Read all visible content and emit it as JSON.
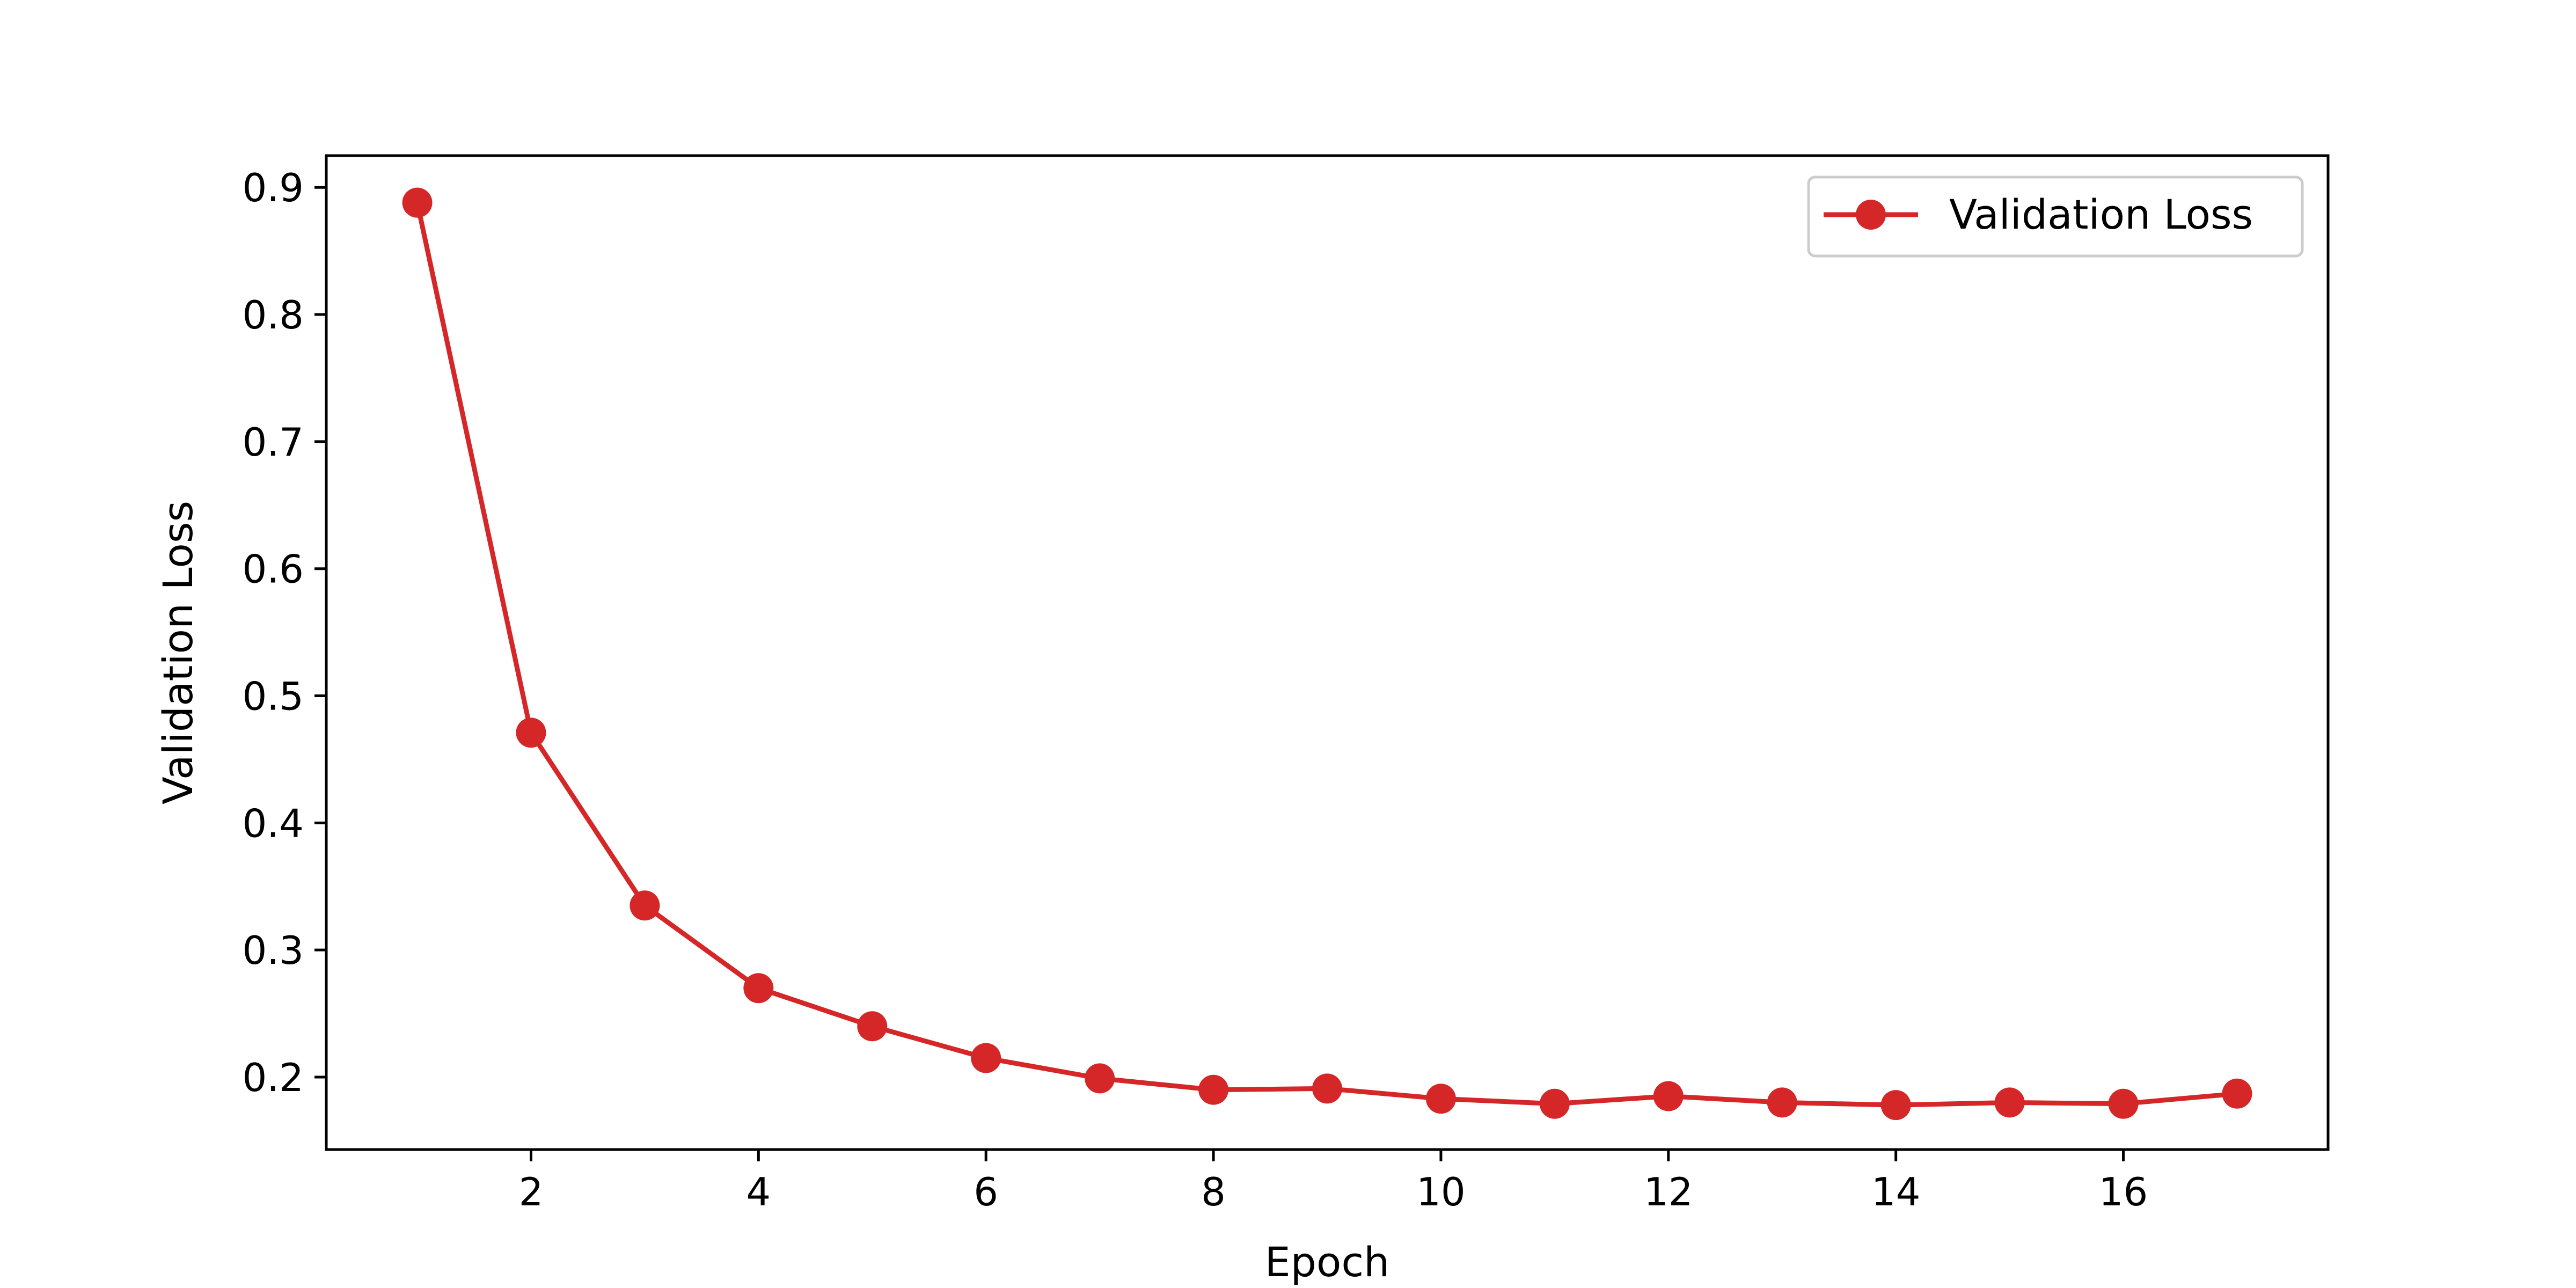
{
  "chart_data": {
    "type": "line",
    "title": "",
    "xlabel": "Epoch",
    "ylabel": "Validation Loss",
    "xlim": [
      0.2,
      17.8
    ],
    "ylim": [
      0.143,
      0.925
    ],
    "x_ticks": [
      2,
      4,
      6,
      8,
      10,
      12,
      14,
      16
    ],
    "y_ticks": [
      0.2,
      0.3,
      0.4,
      0.5,
      0.6,
      0.7,
      0.8,
      0.9
    ],
    "grid": false,
    "legend": {
      "position": "top-right",
      "entries": [
        "Validation Loss"
      ]
    },
    "series": [
      {
        "name": "Validation Loss",
        "color": "#d62728",
        "marker": "circle",
        "x": [
          1,
          2,
          3,
          4,
          5,
          6,
          7,
          8,
          9,
          10,
          11,
          12,
          13,
          14,
          15,
          16,
          17
        ],
        "y": [
          0.888,
          0.471,
          0.335,
          0.27,
          0.24,
          0.215,
          0.199,
          0.19,
          0.191,
          0.183,
          0.179,
          0.185,
          0.18,
          0.178,
          0.18,
          0.179,
          0.187
        ]
      }
    ]
  }
}
